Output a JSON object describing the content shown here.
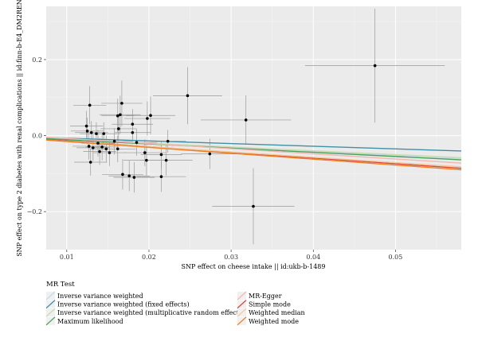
{
  "chart_data": {
    "type": "scatter",
    "xlabel": "SNP effect on cheese intake || id:ukb-b-1489",
    "ylabel": "SNP effect on type 2 diabetes with renal complications || id:finn-b-E4_DM2REN",
    "xlim": [
      0.0075,
      0.058
    ],
    "ylim": [
      -0.3,
      0.34
    ],
    "x_ticks": [
      0.01,
      0.02,
      0.03,
      0.04,
      0.05
    ],
    "x_tick_labels": [
      "0.01",
      "0.02",
      "0.03",
      "0.04",
      "0.05"
    ],
    "y_ticks": [
      -0.2,
      0.0,
      0.2
    ],
    "y_tick_labels": [
      "−0.2",
      "0.0",
      "0.2"
    ],
    "grid": true,
    "points": [
      {
        "x": 0.0475,
        "y": 0.184,
        "xerr": 0.0085,
        "yerr": 0.15
      },
      {
        "x": 0.0247,
        "y": 0.105,
        "xerr": 0.0042,
        "yerr": 0.075
      },
      {
        "x": 0.0318,
        "y": 0.041,
        "xerr": 0.0055,
        "yerr": 0.065
      },
      {
        "x": 0.0327,
        "y": -0.186,
        "xerr": 0.005,
        "yerr": 0.1
      },
      {
        "x": 0.0274,
        "y": -0.048,
        "xerr": 0.0035,
        "yerr": 0.04
      },
      {
        "x": 0.0223,
        "y": -0.015,
        "xerr": 0.0022,
        "yerr": 0.03
      },
      {
        "x": 0.0221,
        "y": -0.065,
        "xerr": 0.0032,
        "yerr": 0.04
      },
      {
        "x": 0.0215,
        "y": -0.05,
        "xerr": 0.0025,
        "yerr": 0.035
      },
      {
        "x": 0.0215,
        "y": -0.108,
        "xerr": 0.003,
        "yerr": 0.04
      },
      {
        "x": 0.0202,
        "y": 0.053,
        "xerr": 0.003,
        "yerr": 0.05
      },
      {
        "x": 0.0198,
        "y": 0.045,
        "xerr": 0.0028,
        "yerr": 0.045
      },
      {
        "x": 0.0197,
        "y": -0.065,
        "xerr": 0.0028,
        "yerr": 0.04
      },
      {
        "x": 0.0195,
        "y": -0.045,
        "xerr": 0.0025,
        "yerr": 0.035
      },
      {
        "x": 0.0185,
        "y": -0.018,
        "xerr": 0.0025,
        "yerr": 0.035
      },
      {
        "x": 0.0182,
        "y": -0.11,
        "xerr": 0.0025,
        "yerr": 0.04
      },
      {
        "x": 0.018,
        "y": 0.008,
        "xerr": 0.0022,
        "yerr": 0.03
      },
      {
        "x": 0.018,
        "y": 0.03,
        "xerr": 0.0025,
        "yerr": 0.04
      },
      {
        "x": 0.0176,
        "y": -0.106,
        "xerr": 0.0025,
        "yerr": 0.04
      },
      {
        "x": 0.0168,
        "y": -0.102,
        "xerr": 0.0025,
        "yerr": 0.04
      },
      {
        "x": 0.0167,
        "y": 0.085,
        "xerr": 0.0025,
        "yerr": 0.06
      },
      {
        "x": 0.0165,
        "y": 0.055,
        "xerr": 0.0025,
        "yerr": 0.05
      },
      {
        "x": 0.0163,
        "y": 0.018,
        "xerr": 0.0022,
        "yerr": 0.035
      },
      {
        "x": 0.0162,
        "y": -0.035,
        "xerr": 0.0022,
        "yerr": 0.035
      },
      {
        "x": 0.0162,
        "y": 0.052,
        "xerr": 0.002,
        "yerr": 0.045
      },
      {
        "x": 0.0158,
        "y": -0.015,
        "xerr": 0.0022,
        "yerr": 0.035
      },
      {
        "x": 0.0152,
        "y": -0.045,
        "xerr": 0.002,
        "yerr": 0.035
      },
      {
        "x": 0.0148,
        "y": -0.035,
        "xerr": 0.002,
        "yerr": 0.035
      },
      {
        "x": 0.0145,
        "y": 0.005,
        "xerr": 0.002,
        "yerr": 0.03
      },
      {
        "x": 0.0143,
        "y": -0.03,
        "xerr": 0.002,
        "yerr": 0.035
      },
      {
        "x": 0.014,
        "y": -0.042,
        "xerr": 0.002,
        "yerr": 0.035
      },
      {
        "x": 0.0138,
        "y": -0.02,
        "xerr": 0.002,
        "yerr": 0.035
      },
      {
        "x": 0.0136,
        "y": 0.005,
        "xerr": 0.002,
        "yerr": 0.03
      },
      {
        "x": 0.0132,
        "y": -0.032,
        "xerr": 0.002,
        "yerr": 0.035
      },
      {
        "x": 0.013,
        "y": 0.008,
        "xerr": 0.002,
        "yerr": 0.03
      },
      {
        "x": 0.0129,
        "y": -0.07,
        "xerr": 0.002,
        "yerr": 0.035
      },
      {
        "x": 0.0128,
        "y": 0.08,
        "xerr": 0.002,
        "yerr": 0.05
      },
      {
        "x": 0.0127,
        "y": -0.028,
        "xerr": 0.002,
        "yerr": 0.035
      },
      {
        "x": 0.0125,
        "y": 0.012,
        "xerr": 0.002,
        "yerr": 0.035
      },
      {
        "x": 0.0124,
        "y": 0.025,
        "xerr": 0.002,
        "yerr": 0.04
      }
    ],
    "fit_lines": [
      {
        "name": "Inverse variance weighted",
        "slope": -1.05,
        "intercept": 0.0,
        "color": "#c4dde4"
      },
      {
        "name": "Inverse variance weighted (fixed effects)",
        "slope": -0.7,
        "intercept": 0.0,
        "color": "#3f8fa6"
      },
      {
        "name": "Inverse variance weighted (multiplicative random effects)",
        "slope": -1.0,
        "intercept": 0.0,
        "color": "#c7dcb1"
      },
      {
        "name": "Maximum likelihood",
        "slope": -1.1,
        "intercept": 0.0,
        "color": "#4aa160"
      },
      {
        "name": "MR-Egger",
        "slope": -1.35,
        "intercept": 0.006,
        "color": "#f3b8b4"
      },
      {
        "name": "Simple mode",
        "slope": -1.5,
        "intercept": 0.001,
        "color": "#d64a3f"
      },
      {
        "name": "Weighted median",
        "slope": -1.4,
        "intercept": -0.001,
        "color": "#f6c896"
      },
      {
        "name": "Weighted mode",
        "slope": -1.55,
        "intercept": 0.0,
        "color": "#ee7f22"
      }
    ],
    "legend": {
      "title": "MR Test",
      "placement": "bottom"
    }
  }
}
